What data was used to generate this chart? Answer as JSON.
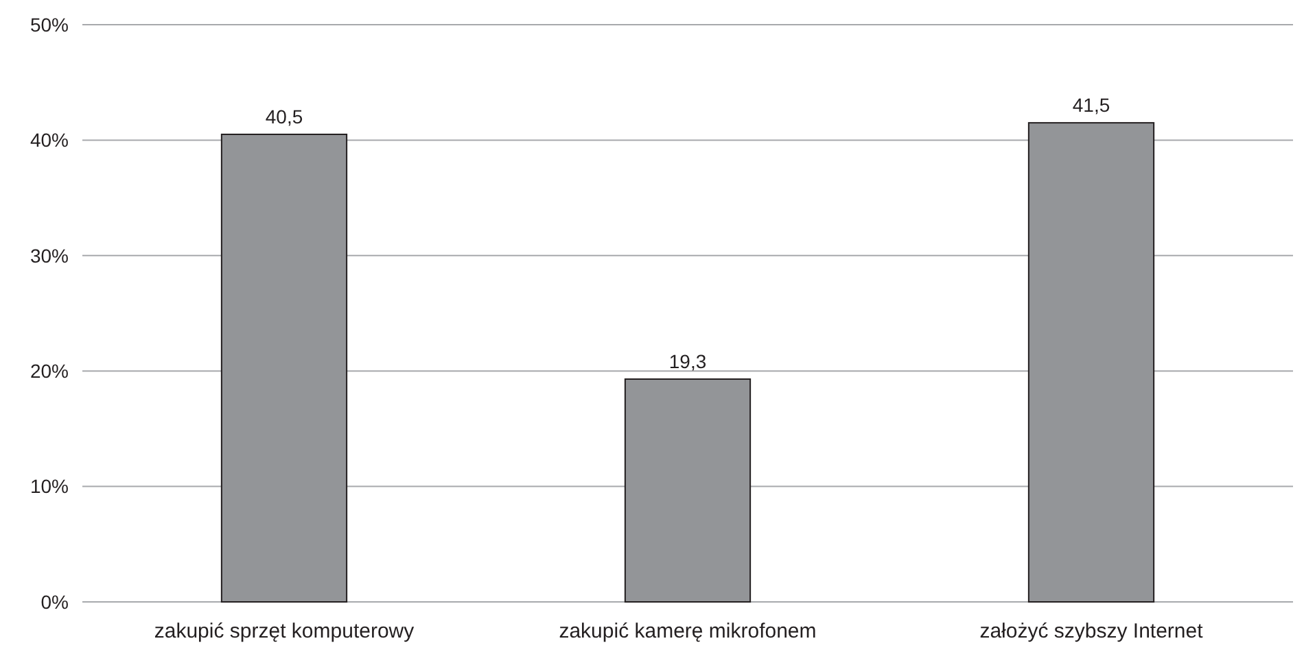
{
  "chart_data": {
    "type": "bar",
    "categories": [
      "zakupić sprzęt komputerowy",
      "zakupić kamerę mikrofonem",
      "założyć szybszy Internet"
    ],
    "values": [
      40.5,
      19.3,
      41.5
    ],
    "color": "#939598",
    "value_labels": [
      "40,5",
      "19,3",
      "41,5"
    ],
    "ylim": [
      0,
      50
    ],
    "yticks": [
      {
        "value": 0,
        "label": "0%"
      },
      {
        "value": 10,
        "label": "10%"
      },
      {
        "value": 20,
        "label": "20%"
      },
      {
        "value": 30,
        "label": "30%"
      },
      {
        "value": 40,
        "label": "40%"
      },
      {
        "value": 50,
        "label": "50%"
      }
    ],
    "grid": "y"
  }
}
